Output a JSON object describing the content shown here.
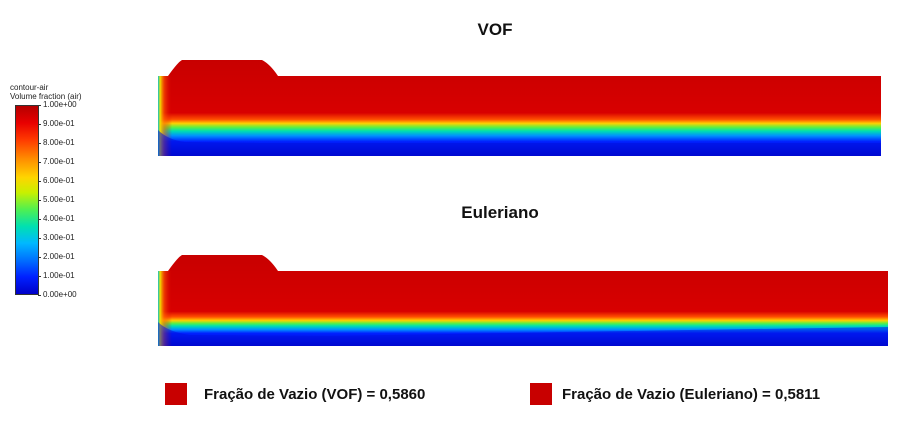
{
  "titles": {
    "vof": "VOF",
    "euler": "Euleriano"
  },
  "legend": {
    "name": "contour-air",
    "quantity": "Volume fraction (air)",
    "ticks": [
      "1.00e+00",
      "9.00e-01",
      "8.00e-01",
      "7.00e-01",
      "6.00e-01",
      "5.00e-01",
      "4.00e-01",
      "3.00e-01",
      "2.00e-01",
      "1.00e-01",
      "0.00e+00"
    ]
  },
  "results": {
    "vof_label": "Fração de Vazio (VOF) = 0,5860",
    "euler_label": "Fração de Vazio (Euleriano) = 0,5811"
  },
  "colors": {
    "air": "#c80000",
    "water": "#0000c8",
    "interface_mid": "#00e0b0"
  }
}
